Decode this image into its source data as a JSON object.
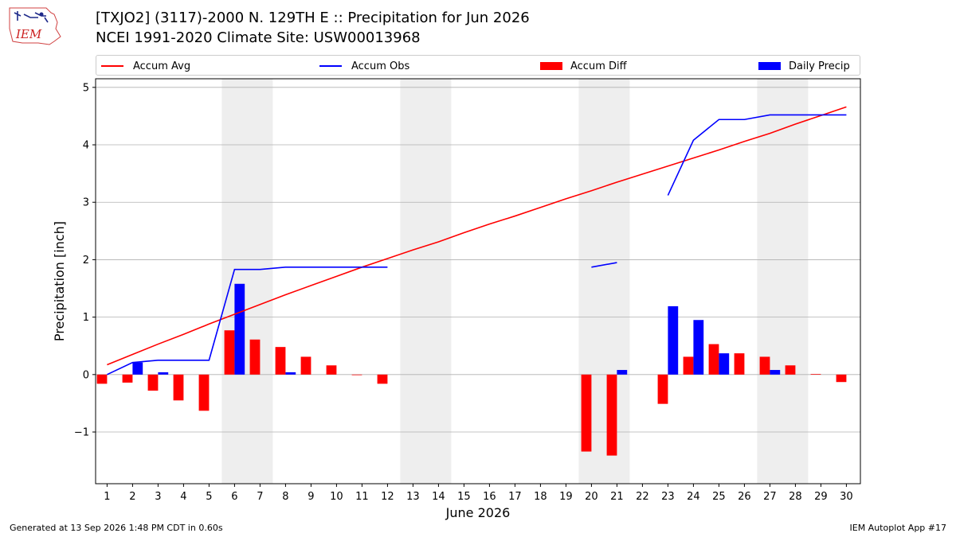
{
  "header": {
    "title_line1": "[TXJO2] (3117)-2000 N. 129TH E :: Precipitation for Jun 2026",
    "title_line2": "NCEI 1991-2020 Climate Site: USW00013968",
    "logo_text": "IEM"
  },
  "footer": {
    "left": "Generated at 13 Sep 2026 1:48 PM CDT in 0.60s",
    "right": "IEM Autoplot App #17"
  },
  "colors": {
    "avg": "#ff0000",
    "obs": "#0000ff",
    "diff": "#ff0000",
    "daily": "#0000ff",
    "weekend_band": "#eeeeee",
    "grid": "#b0b0b0"
  },
  "chart_data": {
    "type": "bar",
    "xlabel": "June 2026",
    "ylabel": "Precipitation [inch]",
    "ylim": [
      -1.9,
      5.15
    ],
    "xlim": [
      0.55,
      30.55
    ],
    "yticks": [
      -1,
      0,
      1,
      2,
      3,
      4,
      5
    ],
    "ytick_labels": [
      "−1",
      "0",
      "1",
      "2",
      "3",
      "4",
      "5"
    ],
    "days": [
      1,
      2,
      3,
      4,
      5,
      6,
      7,
      8,
      9,
      10,
      11,
      12,
      13,
      14,
      15,
      16,
      17,
      18,
      19,
      20,
      21,
      22,
      23,
      24,
      25,
      26,
      27,
      28,
      29,
      30
    ],
    "weekend_bands": [
      [
        6,
        7
      ],
      [
        13,
        14
      ],
      [
        20,
        21
      ],
      [
        27,
        28
      ]
    ],
    "legend_position": "top",
    "grid": true,
    "series": [
      {
        "name": "Accum Avg",
        "kind": "line",
        "values": [
          0.17,
          0.35,
          0.53,
          0.7,
          0.88,
          1.05,
          1.22,
          1.39,
          1.55,
          1.71,
          1.87,
          2.02,
          2.17,
          2.31,
          2.47,
          2.62,
          2.76,
          2.91,
          3.06,
          3.2,
          3.35,
          3.49,
          3.63,
          3.77,
          3.91,
          4.06,
          4.2,
          4.36,
          4.51,
          4.66
        ]
      },
      {
        "name": "Accum Obs",
        "kind": "line",
        "values": [
          0.0,
          0.21,
          0.25,
          0.25,
          0.25,
          1.83,
          1.83,
          1.87,
          1.87,
          1.87,
          1.87,
          1.87,
          null,
          null,
          null,
          null,
          null,
          null,
          null,
          1.87,
          1.95,
          null,
          3.12,
          4.08,
          4.44,
          4.44,
          4.52,
          4.52,
          4.52,
          4.52
        ]
      },
      {
        "name": "Accum Diff",
        "kind": "bar",
        "values": [
          -0.16,
          -0.14,
          -0.28,
          -0.45,
          -0.63,
          0.77,
          0.61,
          0.48,
          0.31,
          0.16,
          -0.01,
          -0.16,
          null,
          null,
          null,
          null,
          null,
          null,
          null,
          -1.34,
          -1.41,
          null,
          -0.51,
          0.31,
          0.53,
          0.37,
          0.31,
          0.16,
          0.01,
          -0.13
        ]
      },
      {
        "name": "Daily Precip",
        "kind": "bar",
        "values": [
          0,
          0.21,
          0.04,
          0,
          0,
          1.58,
          0,
          0.04,
          0,
          0,
          0,
          0,
          null,
          null,
          null,
          null,
          null,
          null,
          null,
          0,
          0.08,
          null,
          1.19,
          0.95,
          0.37,
          0,
          0.08,
          0,
          0,
          0
        ]
      }
    ]
  }
}
